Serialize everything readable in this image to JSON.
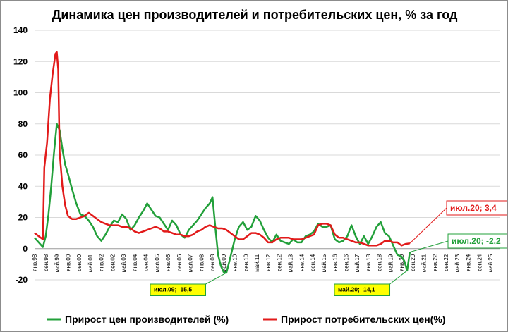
{
  "chart_data": {
    "type": "line",
    "title": "Динамика цен производителей и потребительских цен, % за год",
    "xlabel": "",
    "ylabel": "",
    "ylim": [
      -20,
      140
    ],
    "yticks": [
      -20,
      0,
      20,
      40,
      60,
      80,
      100,
      120,
      140
    ],
    "grid": true,
    "legend_position": "bottom",
    "x_start": "1998-01",
    "x_end": "2025-12",
    "x_tick_labels": [
      "янв.98",
      "сен.98",
      "май.99",
      "янв.00",
      "сен.00",
      "май.01",
      "янв.02",
      "сен.02",
      "май.03",
      "янв.04",
      "сен.04",
      "май.05",
      "янв.06",
      "сен.06",
      "май.07",
      "янв.08",
      "сен.08",
      "май.09",
      "янв.10",
      "сен.10",
      "май.11",
      "янв.12",
      "сен.12",
      "май.13",
      "янв.14",
      "сен.14",
      "май.15",
      "янв.16",
      "сен.16",
      "май.17",
      "янв.18",
      "сен.18",
      "май.19",
      "янв.20",
      "сен.20",
      "май.21",
      "янв.22",
      "сен.22",
      "май.23",
      "янв.24",
      "сен.24",
      "май.25"
    ],
    "series": [
      {
        "name": "Прирост цен производителей (%)",
        "color": "#22a03a",
        "points": [
          [
            "1998-01",
            7
          ],
          [
            "1998-04",
            4
          ],
          [
            "1998-07",
            1
          ],
          [
            "1998-09",
            8
          ],
          [
            "1998-11",
            22
          ],
          [
            "1999-01",
            40
          ],
          [
            "1999-03",
            62
          ],
          [
            "1999-05",
            80
          ],
          [
            "1999-07",
            76
          ],
          [
            "1999-09",
            64
          ],
          [
            "1999-11",
            54
          ],
          [
            "2000-01",
            48
          ],
          [
            "2000-04",
            38
          ],
          [
            "2000-07",
            29
          ],
          [
            "2000-10",
            22
          ],
          [
            "2001-01",
            21
          ],
          [
            "2001-04",
            18
          ],
          [
            "2001-07",
            14
          ],
          [
            "2001-10",
            8
          ],
          [
            "2002-01",
            5
          ],
          [
            "2002-04",
            9
          ],
          [
            "2002-07",
            14
          ],
          [
            "2002-10",
            18
          ],
          [
            "2003-01",
            17
          ],
          [
            "2003-04",
            22
          ],
          [
            "2003-07",
            19
          ],
          [
            "2003-10",
            12
          ],
          [
            "2004-01",
            15
          ],
          [
            "2004-04",
            20
          ],
          [
            "2004-07",
            24
          ],
          [
            "2004-10",
            29
          ],
          [
            "2005-01",
            25
          ],
          [
            "2005-04",
            21
          ],
          [
            "2005-07",
            20
          ],
          [
            "2005-10",
            16
          ],
          [
            "2006-01",
            12
          ],
          [
            "2006-04",
            18
          ],
          [
            "2006-07",
            15
          ],
          [
            "2006-10",
            9
          ],
          [
            "2007-01",
            7
          ],
          [
            "2007-04",
            12
          ],
          [
            "2007-07",
            15
          ],
          [
            "2007-10",
            18
          ],
          [
            "2008-01",
            22
          ],
          [
            "2008-04",
            26
          ],
          [
            "2008-07",
            29
          ],
          [
            "2008-09",
            33
          ],
          [
            "2008-11",
            14
          ],
          [
            "2009-01",
            -4
          ],
          [
            "2009-03",
            -11
          ],
          [
            "2009-05",
            -15
          ],
          [
            "2009-07",
            -15.5
          ],
          [
            "2009-10",
            -5
          ],
          [
            "2010-01",
            6
          ],
          [
            "2010-04",
            14
          ],
          [
            "2010-07",
            17
          ],
          [
            "2010-10",
            12
          ],
          [
            "2011-01",
            14
          ],
          [
            "2011-04",
            21
          ],
          [
            "2011-07",
            18
          ],
          [
            "2011-10",
            12
          ],
          [
            "2012-01",
            7
          ],
          [
            "2012-04",
            4
          ],
          [
            "2012-07",
            9
          ],
          [
            "2012-10",
            5
          ],
          [
            "2013-01",
            4
          ],
          [
            "2013-04",
            3
          ],
          [
            "2013-07",
            6
          ],
          [
            "2013-10",
            4
          ],
          [
            "2014-01",
            4
          ],
          [
            "2014-04",
            8
          ],
          [
            "2014-07",
            9
          ],
          [
            "2014-10",
            11
          ],
          [
            "2015-01",
            16
          ],
          [
            "2015-04",
            14
          ],
          [
            "2015-07",
            14
          ],
          [
            "2015-10",
            15
          ],
          [
            "2016-01",
            6
          ],
          [
            "2016-04",
            4
          ],
          [
            "2016-07",
            5
          ],
          [
            "2016-10",
            8
          ],
          [
            "2017-01",
            15
          ],
          [
            "2017-04",
            8
          ],
          [
            "2017-07",
            3
          ],
          [
            "2017-10",
            8
          ],
          [
            "2018-01",
            3
          ],
          [
            "2018-04",
            8
          ],
          [
            "2018-07",
            14
          ],
          [
            "2018-10",
            17
          ],
          [
            "2019-01",
            10
          ],
          [
            "2019-04",
            8
          ],
          [
            "2019-07",
            2
          ],
          [
            "2019-10",
            -4
          ],
          [
            "2020-01",
            -5
          ],
          [
            "2020-03",
            -8
          ],
          [
            "2020-05",
            -14.1
          ],
          [
            "2020-07",
            -2.2
          ]
        ]
      },
      {
        "name": "Прирост потребительских цен(%)",
        "color": "#e21a1a",
        "points": [
          [
            "1998-01",
            10
          ],
          [
            "1998-04",
            8
          ],
          [
            "1998-07",
            6
          ],
          [
            "1998-08",
            52
          ],
          [
            "1998-10",
            68
          ],
          [
            "1998-12",
            96
          ],
          [
            "1999-02",
            112
          ],
          [
            "1999-04",
            125
          ],
          [
            "1999-05",
            126
          ],
          [
            "1999-06",
            115
          ],
          [
            "1999-07",
            62
          ],
          [
            "1999-09",
            40
          ],
          [
            "1999-11",
            28
          ],
          [
            "2000-01",
            21
          ],
          [
            "2000-04",
            19
          ],
          [
            "2000-07",
            19
          ],
          [
            "2000-10",
            20
          ],
          [
            "2001-01",
            21
          ],
          [
            "2001-04",
            23
          ],
          [
            "2001-07",
            21
          ],
          [
            "2001-10",
            19
          ],
          [
            "2002-01",
            17
          ],
          [
            "2002-04",
            16
          ],
          [
            "2002-07",
            15
          ],
          [
            "2002-10",
            15
          ],
          [
            "2003-01",
            15
          ],
          [
            "2003-04",
            14
          ],
          [
            "2003-07",
            14
          ],
          [
            "2003-10",
            13
          ],
          [
            "2004-01",
            11
          ],
          [
            "2004-04",
            10
          ],
          [
            "2004-07",
            11
          ],
          [
            "2004-10",
            12
          ],
          [
            "2005-01",
            13
          ],
          [
            "2005-04",
            14
          ],
          [
            "2005-07",
            13
          ],
          [
            "2005-10",
            11
          ],
          [
            "2006-01",
            11
          ],
          [
            "2006-04",
            10
          ],
          [
            "2006-07",
            9
          ],
          [
            "2006-10",
            9
          ],
          [
            "2007-01",
            8
          ],
          [
            "2007-04",
            8
          ],
          [
            "2007-07",
            9
          ],
          [
            "2007-10",
            11
          ],
          [
            "2008-01",
            12
          ],
          [
            "2008-04",
            14
          ],
          [
            "2008-07",
            15
          ],
          [
            "2008-10",
            14
          ],
          [
            "2009-01",
            13
          ],
          [
            "2009-04",
            13
          ],
          [
            "2009-07",
            12
          ],
          [
            "2009-10",
            10
          ],
          [
            "2010-01",
            8
          ],
          [
            "2010-04",
            6
          ],
          [
            "2010-07",
            6
          ],
          [
            "2010-10",
            8
          ],
          [
            "2011-01",
            10
          ],
          [
            "2011-04",
            10
          ],
          [
            "2011-07",
            9
          ],
          [
            "2011-10",
            7
          ],
          [
            "2012-01",
            4
          ],
          [
            "2012-04",
            4
          ],
          [
            "2012-07",
            6
          ],
          [
            "2012-10",
            7
          ],
          [
            "2013-01",
            7
          ],
          [
            "2013-04",
            7
          ],
          [
            "2013-07",
            6
          ],
          [
            "2013-10",
            6
          ],
          [
            "2014-01",
            6
          ],
          [
            "2014-04",
            7
          ],
          [
            "2014-07",
            8
          ],
          [
            "2014-10",
            9
          ],
          [
            "2015-01",
            15
          ],
          [
            "2015-04",
            16
          ],
          [
            "2015-07",
            16
          ],
          [
            "2015-10",
            15
          ],
          [
            "2016-01",
            9
          ],
          [
            "2016-04",
            7
          ],
          [
            "2016-07",
            7
          ],
          [
            "2016-10",
            6
          ],
          [
            "2017-01",
            5
          ],
          [
            "2017-04",
            4
          ],
          [
            "2017-07",
            4
          ],
          [
            "2017-10",
            3
          ],
          [
            "2018-01",
            2
          ],
          [
            "2018-04",
            2
          ],
          [
            "2018-07",
            2
          ],
          [
            "2018-10",
            3
          ],
          [
            "2019-01",
            5
          ],
          [
            "2019-04",
            5
          ],
          [
            "2019-07",
            4
          ],
          [
            "2019-10",
            4
          ],
          [
            "2020-01",
            2
          ],
          [
            "2020-04",
            3
          ],
          [
            "2020-07",
            3.4
          ]
        ]
      }
    ],
    "annotations": [
      {
        "label": "июл.09; -15,5",
        "series": 0,
        "x": "2009-07",
        "y": -15.5,
        "style": "yellow-box"
      },
      {
        "label": "май.20; -14,1",
        "series": 0,
        "x": "2020-05",
        "y": -14.1,
        "style": "yellow-box"
      },
      {
        "label": "июл.20; 3,4",
        "series": 1,
        "x": "2020-07",
        "y": 3.4,
        "style": "red-box"
      },
      {
        "label": "июл.20; -2,2",
        "series": 0,
        "x": "2020-07",
        "y": -2.2,
        "style": "green-box"
      }
    ]
  }
}
